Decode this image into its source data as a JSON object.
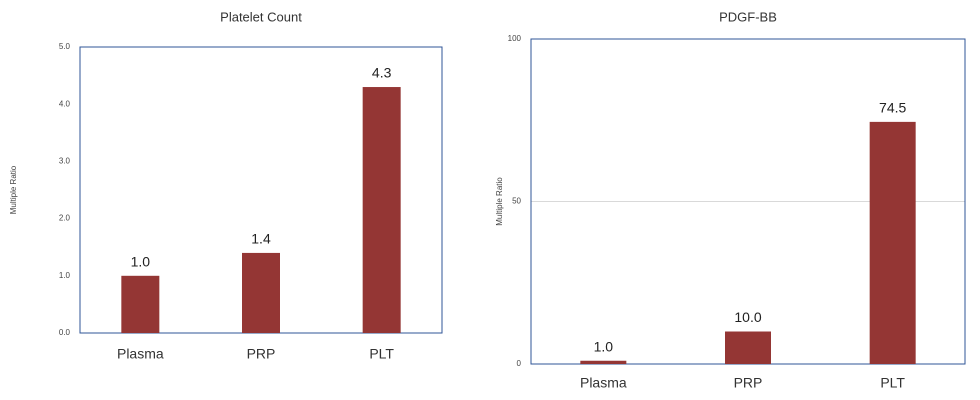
{
  "chart_data": [
    {
      "type": "bar",
      "title": "Platelet Count",
      "y_label": "Multiple Ratio",
      "categories": [
        "Plasma",
        "PRP",
        "PLT"
      ],
      "values": [
        1.0,
        1.4,
        4.3
      ],
      "value_labels": [
        "1.0",
        "1.4",
        "4.3"
      ],
      "color": "#943634",
      "ylim": [
        0,
        5
      ],
      "yticks": [
        {
          "value": 0,
          "label": "0.0"
        },
        {
          "value": 1,
          "label": "1.0"
        },
        {
          "value": 2,
          "label": "2.0"
        },
        {
          "value": 3,
          "label": "3.0"
        },
        {
          "value": 4,
          "label": "4.0"
        },
        {
          "value": 5,
          "label": "5.0"
        }
      ],
      "grid": false
    },
    {
      "type": "bar",
      "title": "PDGF-BB",
      "y_label": "Multiple Ratio",
      "categories": [
        "Plasma",
        "PRP",
        "PLT"
      ],
      "values": [
        1.0,
        10.0,
        74.5
      ],
      "value_labels": [
        "1.0",
        "10.0",
        "74.5"
      ],
      "color": "#943634",
      "ylim": [
        0,
        100
      ],
      "yticks": [
        0,
        50,
        100
      ],
      "grid": true
    }
  ]
}
